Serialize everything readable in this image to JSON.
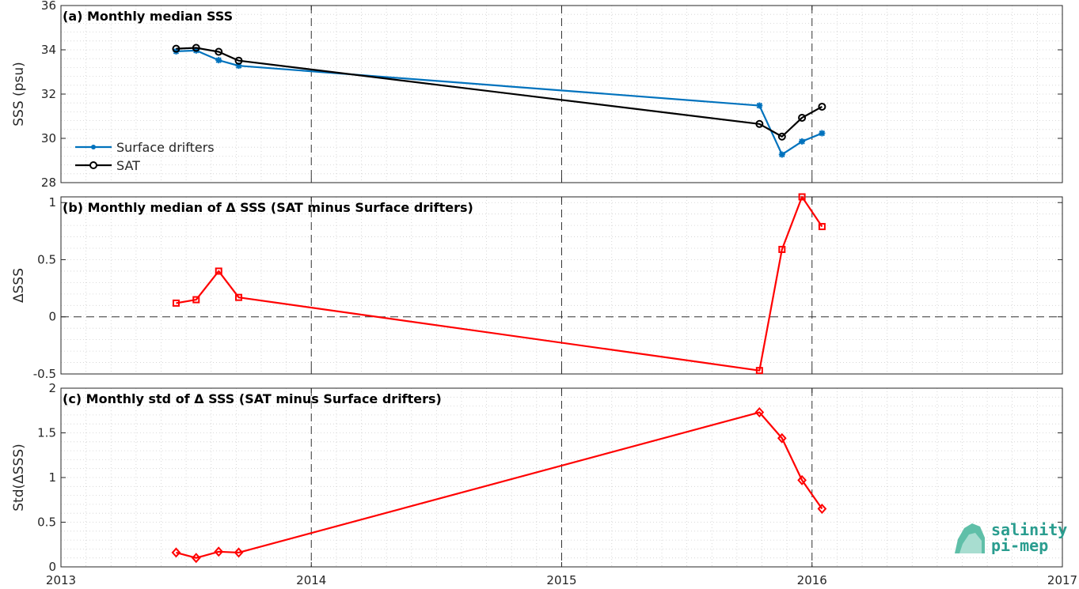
{
  "chart_data": [
    {
      "type": "line",
      "title": "(a) Monthly median SSS",
      "ylabel": "SSS (psu)",
      "xlabel": "",
      "xlim": [
        2013,
        2017
      ],
      "ylim": [
        28,
        36
      ],
      "yticks": [
        28,
        30,
        32,
        34,
        36
      ],
      "ytick_labels": [
        "28",
        "30",
        "32",
        "34",
        "36"
      ],
      "grid": true,
      "legend_position": "bottom-left",
      "series": [
        {
          "name": "Surface drifters",
          "color": "#0072bd",
          "marker": "star",
          "x": [
            2013.46,
            2013.54,
            2013.63,
            2013.71,
            2015.79,
            2015.88,
            2015.96,
            2016.04
          ],
          "y": [
            33.93,
            33.97,
            33.53,
            33.28,
            31.48,
            29.27,
            29.86,
            30.23
          ]
        },
        {
          "name": "SAT",
          "color": "#000000",
          "marker": "circle",
          "x": [
            2013.46,
            2013.54,
            2013.63,
            2013.71,
            2015.79,
            2015.88,
            2015.96,
            2016.04
          ],
          "y": [
            34.05,
            34.09,
            33.91,
            33.51,
            30.65,
            30.08,
            30.93,
            31.43
          ]
        }
      ]
    },
    {
      "type": "line",
      "title": "(b) Monthly median of Δ SSS (SAT minus Surface drifters)",
      "ylabel": "ΔSSS",
      "xlabel": "",
      "xlim": [
        2013,
        2017
      ],
      "ylim": [
        -0.5,
        1.05
      ],
      "yticks": [
        -0.5,
        0,
        0.5,
        1
      ],
      "ytick_labels": [
        "-0.5",
        "0",
        "0.5",
        "1"
      ],
      "grid": true,
      "series": [
        {
          "color": "#ff0000",
          "marker": "square",
          "x": [
            2013.46,
            2013.54,
            2013.63,
            2013.71,
            2015.79,
            2015.88,
            2015.96,
            2016.04
          ],
          "y": [
            0.12,
            0.15,
            0.4,
            0.17,
            -0.47,
            0.59,
            1.05,
            0.79
          ]
        }
      ]
    },
    {
      "type": "line",
      "title": "(c) Monthly std of Δ SSS (SAT minus Surface drifters)",
      "ylabel": "Std(ΔSSS)",
      "xlabel": "",
      "xlim": [
        2013,
        2017
      ],
      "ylim": [
        0,
        2
      ],
      "yticks": [
        0,
        0.5,
        1,
        1.5,
        2
      ],
      "ytick_labels": [
        "0",
        "0.5",
        "1",
        "1.5",
        "2"
      ],
      "xticks": [
        2013,
        2014,
        2015,
        2016,
        2017
      ],
      "xtick_labels": [
        "2013",
        "2014",
        "2015",
        "2016",
        "2017"
      ],
      "grid": true,
      "series": [
        {
          "color": "#ff0000",
          "marker": "diamond",
          "x": [
            2013.46,
            2013.54,
            2013.63,
            2013.71,
            2015.79,
            2015.88,
            2015.96,
            2016.04
          ],
          "y": [
            0.16,
            0.1,
            0.17,
            0.16,
            1.73,
            1.44,
            0.97,
            0.65
          ]
        }
      ]
    }
  ],
  "logo": {
    "line1": "salinity",
    "line2": "pi-mep",
    "color": "#2a9d8f"
  }
}
